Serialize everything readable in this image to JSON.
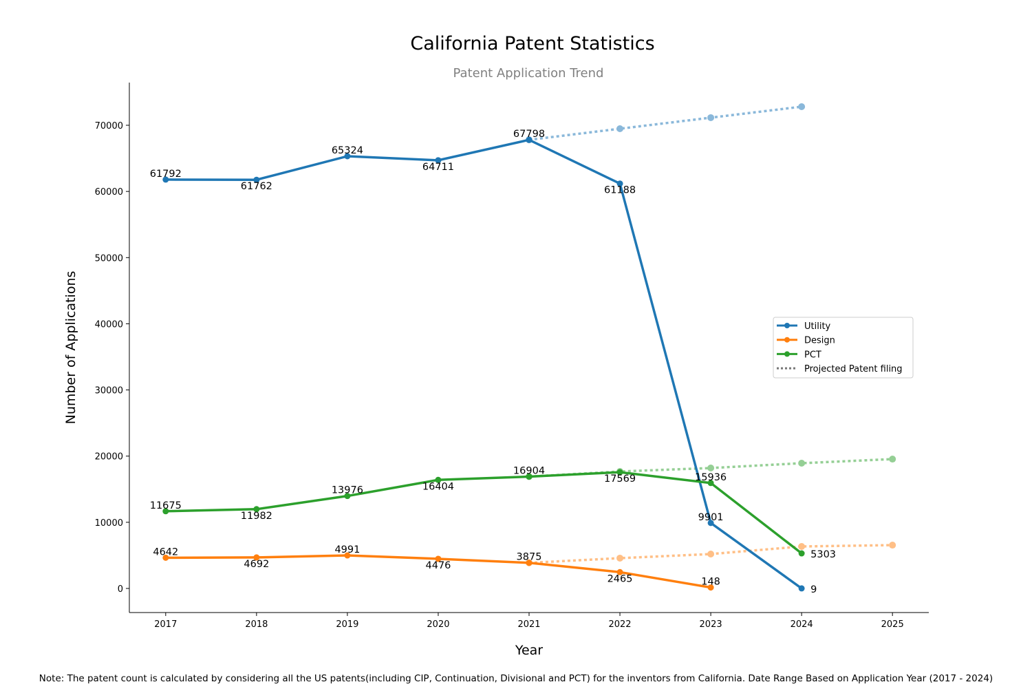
{
  "chart_data": {
    "type": "line",
    "title": "California Patent Statistics",
    "subtitle": "Patent Application Trend",
    "xlabel": "Year",
    "ylabel": "Number of Applications",
    "xlim": [
      2016.6,
      2025.4
    ],
    "ylim": [
      -3640,
      76450
    ],
    "x_ticks": [
      "2017",
      "2018",
      "2019",
      "2020",
      "2021",
      "2022",
      "2023",
      "2024",
      "2025"
    ],
    "y_ticks": [
      "0",
      "10000",
      "20000",
      "30000",
      "40000",
      "50000",
      "60000",
      "70000"
    ],
    "grid": false,
    "legend_position": "center-right",
    "series": [
      {
        "name": "Utility",
        "color": "#1f77b4",
        "x": [
          2017,
          2018,
          2019,
          2020,
          2021,
          2022,
          2023,
          2024
        ],
        "values": [
          61792,
          61762,
          65324,
          64711,
          67798,
          61188,
          9901,
          9
        ]
      },
      {
        "name": "Design",
        "color": "#ff7f0e",
        "x": [
          2017,
          2018,
          2019,
          2020,
          2021,
          2022,
          2023
        ],
        "values": [
          4642,
          4692,
          4991,
          4476,
          3875,
          2465,
          148
        ]
      },
      {
        "name": "PCT",
        "color": "#2ca02c",
        "x": [
          2017,
          2018,
          2019,
          2020,
          2021,
          2022,
          2023,
          2024
        ],
        "values": [
          11675,
          11982,
          13976,
          16404,
          16904,
          17569,
          15936,
          5303
        ]
      }
    ],
    "projections": [
      {
        "of": "Utility",
        "color": "#8ab8da",
        "x": [
          2021,
          2022,
          2023,
          2024
        ],
        "values": [
          67798,
          69480,
          71150,
          72810
        ]
      },
      {
        "of": "Design",
        "color": "#ffbf86",
        "x": [
          2021,
          2022,
          2023,
          2024,
          2025
        ],
        "values": [
          3875,
          4580,
          5200,
          6345,
          6550
        ]
      },
      {
        "of": "PCT",
        "color": "#95cf95",
        "x": [
          2021,
          2022,
          2023,
          2024,
          2025
        ],
        "values": [
          16904,
          17680,
          18200,
          18930,
          19550
        ]
      }
    ],
    "legend": [
      "Utility",
      "Design",
      "PCT",
      "Projected Patent filing"
    ],
    "legend_projected_color": "#777777"
  },
  "note": "Note: The patent count is calculated by considering all the US patents(including CIP, Continuation, Divisional and PCT) for the inventors from California. Date Range Based on Application Year (2017 - 2024)"
}
